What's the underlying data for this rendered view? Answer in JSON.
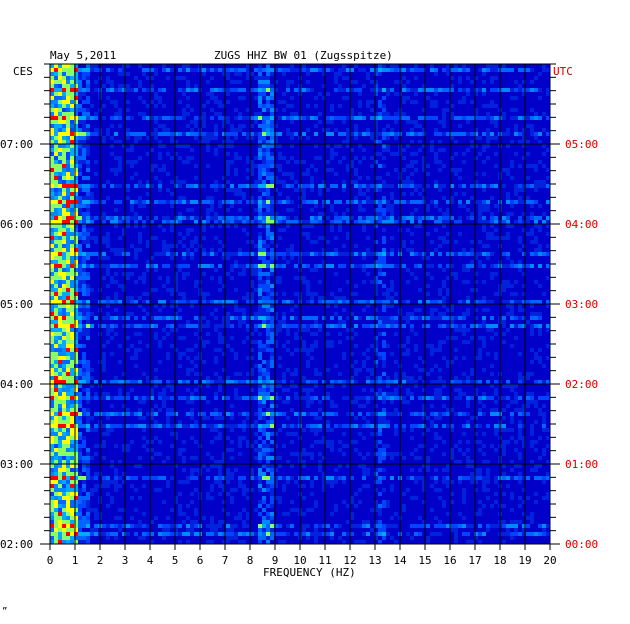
{
  "header": {
    "date": "May 5,2011",
    "station": "ZUGS HHZ BW 01 (Zugsspitze)",
    "left_zone": "CES",
    "right_zone": "UTC"
  },
  "footer": {
    "mark": "”"
  },
  "chart_data": {
    "type": "heatmap",
    "title": "ZUGS HHZ BW 01 (Zugsspitze)",
    "xlabel": "FREQUENCY (HZ)",
    "ylabel_left": "CES",
    "ylabel_right": "UTC",
    "xlim": [
      0,
      20
    ],
    "x_ticks": [
      "0",
      "1",
      "2",
      "3",
      "4",
      "5",
      "6",
      "7",
      "8",
      "9",
      "10",
      "11",
      "12",
      "13",
      "14",
      "15",
      "16",
      "17",
      "18",
      "19",
      "20"
    ],
    "y_ticks_left": [
      "07:00",
      "06:00",
      "05:00",
      "04:00",
      "03:00",
      "02:00"
    ],
    "y_ticks_right": [
      "05:00",
      "04:00",
      "03:00",
      "02:00",
      "01:00",
      "00:00"
    ],
    "y_range_hours_local": [
      2.0,
      7.9
    ],
    "grid": true,
    "colors": {
      "axis": "#000000",
      "utc": "#cc0000",
      "background": "#0000c8",
      "mid": "#0033ff",
      "cyan": "#00ccff",
      "yellow": "#ffff00",
      "red": "#ff0000"
    }
  }
}
